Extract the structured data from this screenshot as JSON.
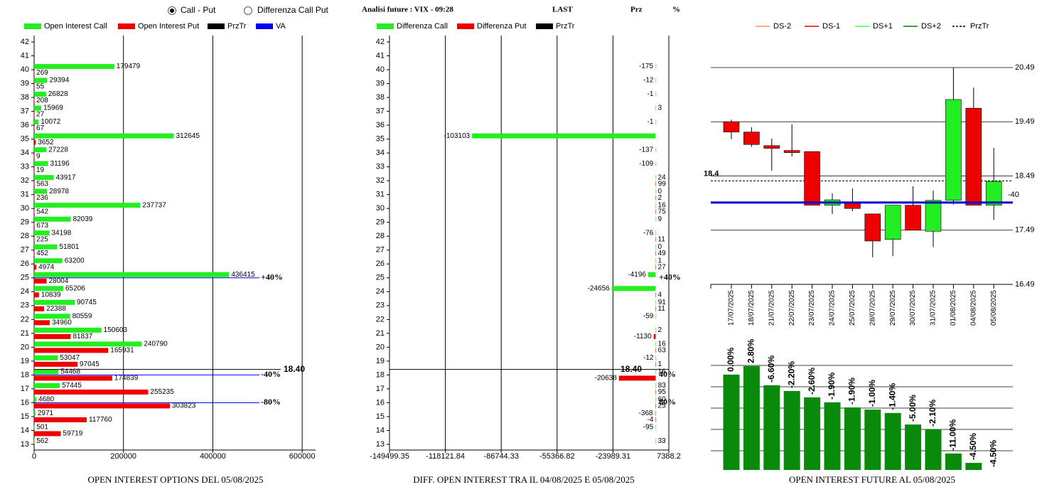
{
  "header": {
    "options": [
      "Call - Put",
      "Differenza Call Put"
    ],
    "selected": 0,
    "title": "Analisi future : VIX - 09:28",
    "columns": [
      "LAST",
      "Prz",
      "%"
    ]
  },
  "chart_data": [
    {
      "type": "barh",
      "title": "OPEN INTEREST OPTIONS DEL 05/08/2025",
      "categories": [
        13,
        14,
        15,
        16,
        17,
        18,
        19,
        20,
        21,
        22,
        23,
        24,
        25,
        26,
        27,
        28,
        29,
        30,
        31,
        32,
        33,
        34,
        35,
        36,
        37,
        38,
        39,
        40,
        41,
        42
      ],
      "series": [
        {
          "name": "Open Interest Call",
          "color": "#22ee22",
          "values": [
            562,
            501,
            2971,
            4680,
            57445,
            54468,
            53047,
            240790,
            150603,
            80559,
            90745,
            65206,
            436415,
            63200,
            51801,
            34198,
            82039,
            237737,
            28978,
            43917,
            31196,
            27228,
            312645,
            10072,
            15969,
            26828,
            29394,
            179479,
            null,
            null
          ]
        },
        {
          "name": "Open Interest Put",
          "color": "#ee0000",
          "values": [
            null,
            59719,
            117760,
            303823,
            255235,
            174839,
            97045,
            165931,
            81837,
            34960,
            22388,
            10839,
            28004,
            4974,
            452,
            225,
            673,
            542,
            236,
            563,
            19,
            9,
            3652,
            67,
            27,
            208,
            55,
            269,
            null,
            null
          ]
        }
      ],
      "xlim": [
        0,
        630000
      ],
      "xticks": [
        0,
        200000,
        400000,
        600000
      ],
      "grid": true,
      "price_line": {
        "name": "PrzTr",
        "color": "#000000",
        "value": 18.4,
        "label": "18.40"
      },
      "va": {
        "name": "VA",
        "color": "#0000ee",
        "levels": [
          {
            "category": 25,
            "label": "+40%"
          },
          {
            "category": 18,
            "label": "-40%"
          },
          {
            "category": 16,
            "label": "-80%"
          }
        ]
      }
    },
    {
      "type": "barh",
      "title": "DIFF. OPEN INTEREST TRA IL 04/08/2025 E 05/08/2025",
      "categories": [
        13,
        14,
        15,
        16,
        17,
        18,
        19,
        20,
        21,
        22,
        23,
        24,
        25,
        26,
        27,
        28,
        29,
        30,
        31,
        32,
        33,
        34,
        35,
        36,
        37,
        38,
        39,
        40,
        41,
        42
      ],
      "series": [
        {
          "name": "Differenza Call",
          "color": "#22ee22",
          "values": [
            33,
            -95,
            -368,
            60,
            83,
            16,
            -12,
            16,
            2,
            -59,
            91,
            -24656,
            -4196,
            1,
            0,
            -76,
            9,
            16,
            0,
            24,
            -109,
            -137,
            -103103,
            -1,
            3,
            -1,
            -12,
            -175,
            null,
            null
          ]
        },
        {
          "name": "Differenza Put",
          "color": "#ee0000",
          "values": [
            null,
            null,
            -4,
            25,
            95,
            -20638,
            1,
            63,
            -1130,
            null,
            11,
            4,
            null,
            27,
            49,
            11,
            null,
            75,
            2,
            99,
            null,
            null,
            null,
            null,
            null,
            null,
            null,
            null,
            null,
            null
          ]
        }
      ],
      "xlim": [
        -149499.35,
        7388.2
      ],
      "xticks": [
        -149499.35,
        -118121.84,
        -86744.33,
        -55366.82,
        -23989.31,
        7388.2
      ],
      "grid": true,
      "price_line": {
        "name": "PrzTr",
        "color": "#000000",
        "value": 18.4,
        "label": "18.40"
      },
      "annotations": [
        {
          "category": 25,
          "label": "+40%"
        },
        {
          "category": 18,
          "label": "40%"
        },
        {
          "category": 16,
          "label": "80%"
        }
      ]
    },
    {
      "type": "candlestick",
      "categories": [
        "17/07/2025",
        "18/07/2025",
        "21/07/2025",
        "22/07/2025",
        "23/07/2025",
        "24/07/2025",
        "25/07/2025",
        "28/07/2025",
        "29/07/2025",
        "30/07/2025",
        "31/07/2025",
        "01/08/2025",
        "04/08/2025",
        "05/08/2025"
      ],
      "open": [
        19.49,
        19.3,
        19.05,
        18.96,
        18.94,
        17.95,
        17.99,
        17.79,
        17.32,
        17.95,
        17.47,
        18.04,
        19.74,
        17.95
      ],
      "high": [
        19.53,
        19.39,
        19.18,
        19.44,
        18.94,
        18.17,
        18.26,
        17.79,
        17.95,
        18.3,
        18.22,
        20.49,
        20.12,
        19.01
      ],
      "low": [
        19.17,
        19.03,
        18.59,
        18.85,
        17.95,
        17.79,
        17.84,
        16.99,
        17.01,
        17.49,
        17.18,
        17.96,
        17.95,
        17.68
      ],
      "close": [
        19.3,
        19.07,
        19.0,
        18.92,
        17.95,
        18.05,
        17.89,
        17.29,
        17.95,
        17.49,
        18.04,
        19.9,
        17.95,
        18.39
      ],
      "up_color": "#22ee22",
      "down_color": "#ee0000",
      "ylim": [
        16.49,
        20.49
      ],
      "yticks": [
        16.49,
        17.49,
        18.49,
        19.49,
        20.49
      ],
      "grid": true,
      "legend": [
        {
          "name": "DS-2",
          "color": "#ff8c69"
        },
        {
          "name": "DS-1",
          "color": "#ee0000"
        },
        {
          "name": "DS+1",
          "color": "#44ff44"
        },
        {
          "name": "DS+2",
          "color": "#008000"
        }
      ],
      "price_line": {
        "name": "PrzTr",
        "color": "#000000",
        "value": 18.4
      },
      "va_line": {
        "value": 18.0,
        "color": "#0000cc"
      },
      "annotations": [
        {
          "label": "-40"
        }
      ]
    },
    {
      "type": "bar",
      "title": "OPEN INTEREST FUTURE AL 05/08/2025",
      "color": "#0a8a0a",
      "values": [
        4.47,
        4.87,
        3.97,
        3.7,
        3.4,
        3.17,
        2.93,
        2.83,
        2.67,
        2.13,
        1.9,
        0.77,
        0.33,
        0
      ],
      "labels": [
        "0.00%",
        "2.80%",
        "-6.60%",
        "-2.20%",
        "-2.60%",
        "-1.90%",
        "-1.90%",
        "-1.00%",
        "-1.40%",
        "-5.00%",
        "-2.10%",
        "-11.00%",
        "-4.50%",
        "-4.50%"
      ],
      "ylim": [
        0,
        4.9
      ],
      "gridlines": [
        0.9,
        1.9,
        2.9,
        3.9,
        4.9
      ]
    }
  ]
}
